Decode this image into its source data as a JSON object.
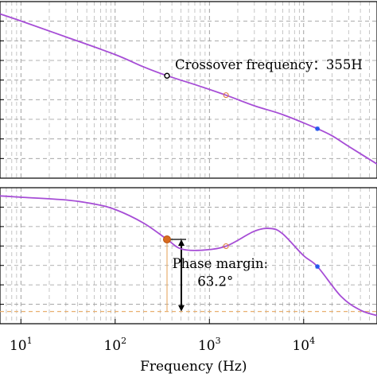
{
  "chart_data": [
    {
      "type": "line",
      "panel": "magnitude",
      "xscale": "log",
      "xlim": [
        6,
        60000
      ],
      "ylim": [
        0,
        1
      ],
      "grid": true,
      "line_color": "#a64dd6",
      "series": [
        {
          "x": [
            6,
            10,
            30,
            100,
            200,
            355,
            700,
            1500,
            3000,
            6000,
            14000,
            20000,
            30000,
            60000
          ],
          "y": [
            0.93,
            0.89,
            0.8,
            0.7,
            0.63,
            0.58,
            0.53,
            0.47,
            0.41,
            0.36,
            0.28,
            0.24,
            0.18,
            0.08
          ]
        }
      ],
      "markers": [
        {
          "x": 355,
          "y": 0.58,
          "shape": "circle-black"
        },
        {
          "x": 1500,
          "y": 0.47,
          "shape": "circle-orange"
        },
        {
          "x": 14000,
          "y": 0.28,
          "shape": "star-blue"
        }
      ],
      "annotations": [
        {
          "text": "Crossover frequency：355H",
          "x": 355,
          "y": 0.58
        }
      ]
    },
    {
      "type": "line",
      "panel": "phase",
      "xscale": "log",
      "xlim": [
        6,
        60000
      ],
      "ylim": [
        0,
        1
      ],
      "grid": true,
      "line_color": "#a64dd6",
      "series": [
        {
          "x": [
            6,
            10,
            30,
            60,
            100,
            200,
            355,
            500,
            800,
            1500,
            3000,
            4500,
            6000,
            10000,
            14000,
            25000,
            40000,
            60000
          ],
          "y": [
            0.94,
            0.93,
            0.91,
            0.88,
            0.84,
            0.74,
            0.62,
            0.55,
            0.54,
            0.57,
            0.68,
            0.7,
            0.66,
            0.5,
            0.42,
            0.2,
            0.1,
            0.06
          ]
        }
      ],
      "markers": [
        {
          "x": 355,
          "y": 0.62,
          "shape": "circle-orange-filled"
        },
        {
          "x": 1500,
          "y": 0.57,
          "shape": "circle-orange"
        },
        {
          "x": 14000,
          "y": 0.42,
          "shape": "star-blue"
        }
      ],
      "annotations": [
        {
          "text": "Phase margin:",
          "x": 1300,
          "y": 0.42
        },
        {
          "text": "63.2°",
          "x": 1300,
          "y": 0.29
        }
      ],
      "xlabel": "Frequency (Hz)",
      "xticks": [
        {
          "value": 10,
          "base": "10",
          "exp": "1"
        },
        {
          "value": 100,
          "base": "10",
          "exp": "2"
        },
        {
          "value": 1000,
          "base": "10",
          "exp": "3"
        },
        {
          "value": 10000,
          "base": "10",
          "exp": "4"
        }
      ]
    }
  ]
}
